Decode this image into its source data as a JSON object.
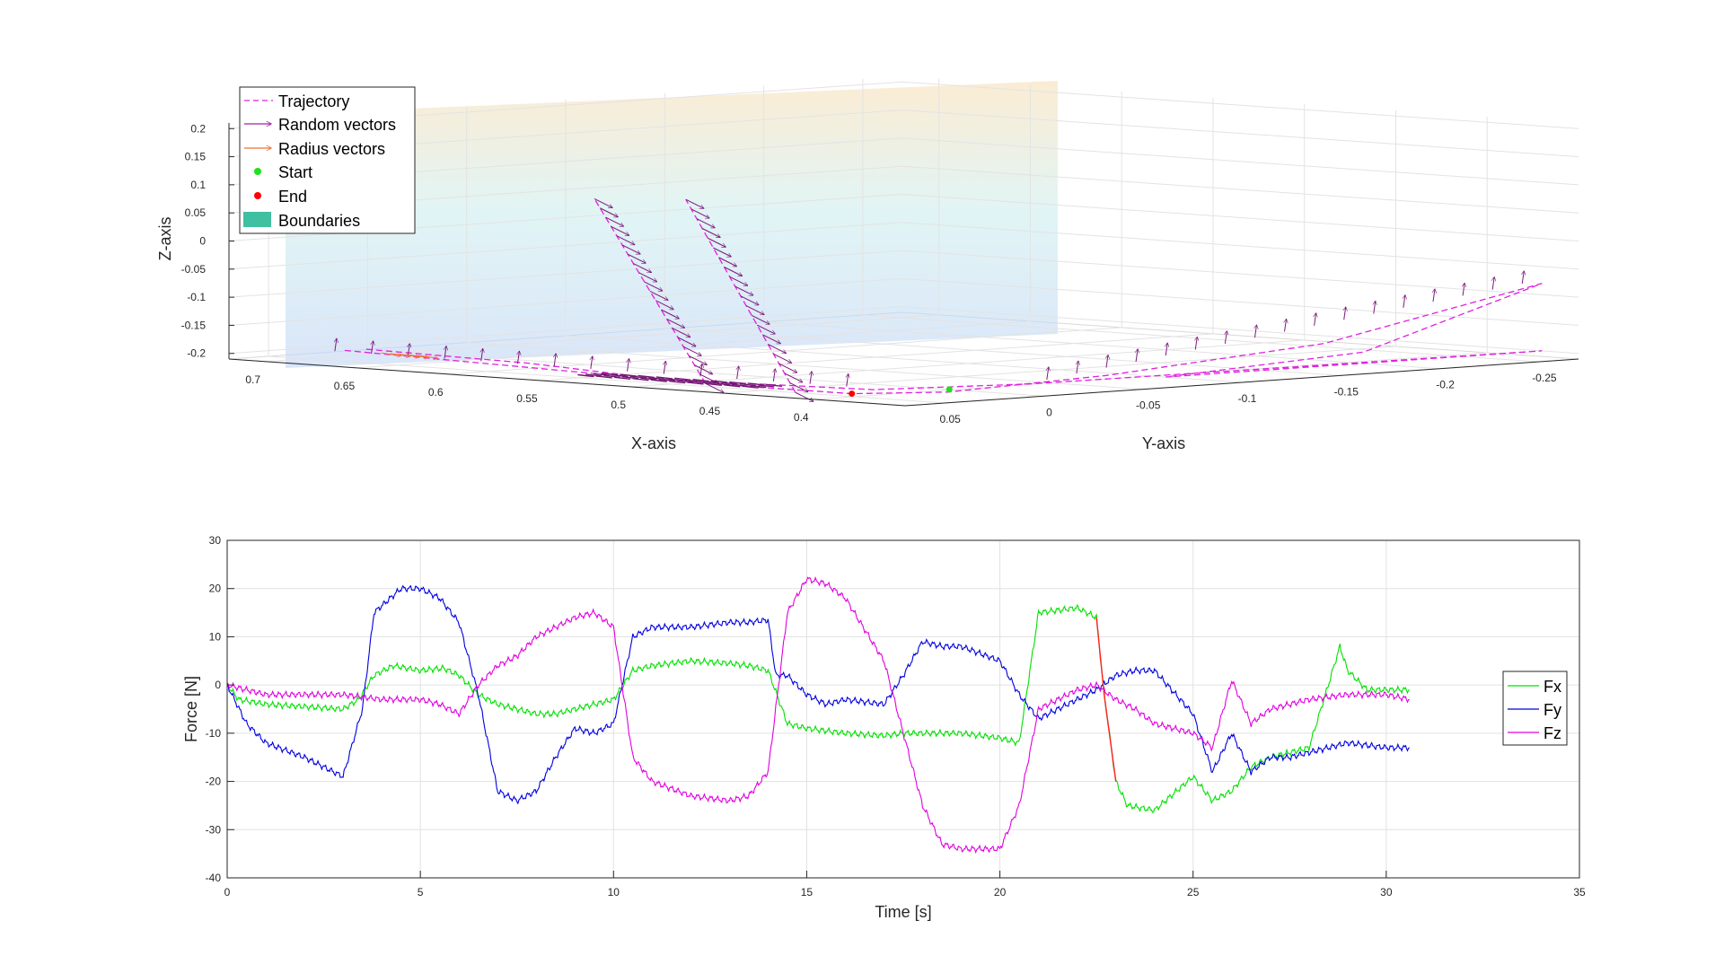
{
  "chart_data": [
    {
      "type": "line3d",
      "xlabel": "X-axis",
      "ylabel": "Y-axis",
      "zlabel": "Z-axis",
      "x_ticks": [
        "0.7",
        "0.65",
        "0.6",
        "0.55",
        "0.5",
        "0.45",
        "0.4"
      ],
      "y_ticks": [
        "0.05",
        "0",
        "-0.05",
        "-0.1",
        "-0.15",
        "-0.2",
        "-0.25"
      ],
      "z_ticks": [
        "0.2",
        "0.15",
        "0.1",
        "0.05",
        "0",
        "-0.05",
        "-0.1",
        "-0.15",
        "-0.2"
      ],
      "xlim": [
        0.35,
        0.72
      ],
      "ylim": [
        -0.27,
        0.07
      ],
      "zlim": [
        -0.21,
        0.21
      ],
      "grid": true,
      "legend_position": "top-left",
      "legend": [
        {
          "label": "Trajectory",
          "color": "#E020E0",
          "style": "dashed-line"
        },
        {
          "label": "Random vectors",
          "color": "#A020A0",
          "style": "arrow"
        },
        {
          "label": "Radius vectors",
          "color": "#F07030",
          "style": "arrow"
        },
        {
          "label": "Start",
          "color": "#20E020",
          "style": "dot"
        },
        {
          "label": "End",
          "color": "#FF0000",
          "style": "dot"
        },
        {
          "label": "Boundaries",
          "color": "#40C0A0",
          "style": "patch"
        }
      ],
      "start": {
        "x": 0.38,
        "y": 0.02,
        "z": -0.2
      },
      "end": {
        "x": 0.39,
        "y": 0.06,
        "z": -0.2
      }
    },
    {
      "type": "line",
      "xlabel": "Time [s]",
      "ylabel": "Force [N]",
      "xlim": [
        0,
        35
      ],
      "ylim": [
        -40,
        30
      ],
      "x_ticks": [
        "0",
        "5",
        "10",
        "15",
        "20",
        "25",
        "30",
        "35"
      ],
      "y_ticks": [
        "30",
        "20",
        "10",
        "0",
        "-10",
        "-20",
        "-30",
        "-40"
      ],
      "grid": true,
      "legend_position": "right",
      "series": [
        {
          "name": "Fx",
          "color": "#00E000",
          "x": [
            0,
            0.3,
            1,
            2,
            3,
            3.4,
            3.8,
            4.3,
            5,
            5.6,
            6,
            6.5,
            7,
            7.5,
            8,
            8.5,
            9,
            9.5,
            10,
            10.5,
            11,
            12,
            13,
            13.5,
            14,
            14.5,
            15,
            16,
            17,
            17.5,
            18,
            19,
            20,
            20.5,
            21,
            22,
            22.5,
            22.7,
            23,
            23.3,
            24,
            25,
            25.5,
            26,
            26.5,
            27,
            28,
            28.5,
            28.8,
            29,
            29.5,
            30,
            30.6
          ],
          "y": [
            0,
            -3,
            -4,
            -4.5,
            -5,
            -3,
            2,
            4,
            3,
            3.5,
            2,
            -2,
            -4,
            -5,
            -6,
            -6,
            -5,
            -4,
            -3,
            3,
            4,
            5,
            4.5,
            4,
            3,
            -8,
            -9,
            -10,
            -10.5,
            -10,
            -10,
            -10,
            -11,
            -12,
            15,
            16,
            14,
            -2,
            -20,
            -25,
            -26,
            -19,
            -24,
            -22,
            -17,
            -15,
            -13,
            0,
            8,
            3,
            -1,
            -1,
            -1
          ]
        },
        {
          "name": "Fy",
          "color": "#0000E0",
          "x": [
            0,
            0.5,
            1,
            2,
            3,
            3.5,
            3.8,
            4.5,
            5,
            5.5,
            6,
            6.5,
            7,
            7.5,
            8,
            8.5,
            9,
            9.5,
            10,
            10.5,
            11,
            12,
            13,
            13.5,
            14,
            14.2,
            14.5,
            15,
            15.5,
            16,
            17,
            17.5,
            18,
            18.5,
            19,
            20,
            20.5,
            21,
            22,
            22.5,
            23,
            23.5,
            24,
            25,
            25.5,
            26,
            26.5,
            27,
            27.5,
            28,
            29,
            30,
            30.6
          ],
          "y": [
            0,
            -8,
            -12,
            -15,
            -19,
            -5,
            15,
            20,
            20,
            18,
            13,
            -2,
            -22,
            -24,
            -22,
            -15,
            -9,
            -10,
            -8,
            10,
            12,
            12,
            13,
            13,
            13.5,
            2,
            2,
            -2,
            -4,
            -3,
            -4,
            2,
            9,
            8,
            8,
            5,
            -2,
            -7,
            -3,
            -1,
            2,
            3,
            3,
            -6,
            -18,
            -10,
            -18,
            -15,
            -15,
            -14,
            -12,
            -13,
            -13
          ]
        },
        {
          "name": "Fz",
          "color": "#E000E0",
          "x": [
            0,
            0.5,
            1,
            2,
            3,
            4,
            5,
            5.5,
            6,
            6.5,
            7,
            7.5,
            8,
            8.5,
            9,
            9.5,
            10,
            10.5,
            11,
            12,
            13,
            13.5,
            14,
            14.5,
            15,
            15.5,
            16,
            17,
            17.5,
            18,
            18.5,
            19,
            20,
            20.5,
            21,
            21.5,
            22,
            22.5,
            23,
            23.5,
            24,
            25,
            25.5,
            26,
            26.5,
            27,
            28,
            29,
            30,
            30.6
          ],
          "y": [
            0,
            -1,
            -2,
            -2,
            -2,
            -3,
            -3,
            -4,
            -6,
            0,
            4,
            6,
            10,
            12,
            14,
            15,
            12,
            -15,
            -20,
            -23,
            -24,
            -23,
            -18,
            15,
            22,
            21,
            18,
            5,
            -10,
            -25,
            -33,
            -34,
            -34,
            -25,
            -5,
            -3,
            -1,
            0,
            -3,
            -5,
            -8,
            -10,
            -13,
            1,
            -8,
            -5,
            -3,
            -2,
            -2,
            -3
          ]
        }
      ]
    }
  ]
}
